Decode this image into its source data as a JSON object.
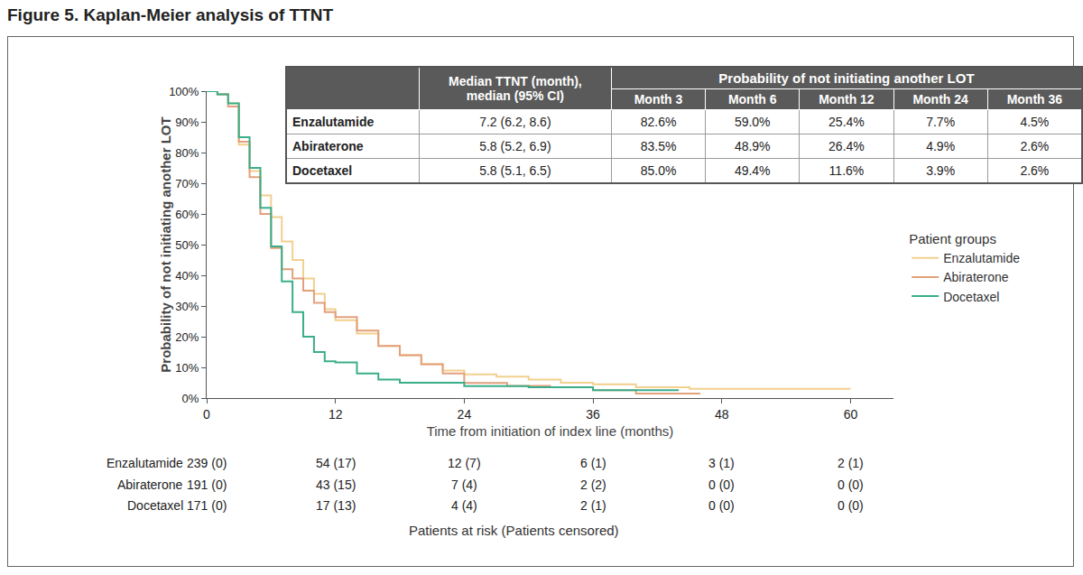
{
  "chart_data": {
    "type": "line",
    "line_style": "step",
    "title": "Figure 5. Kaplan-Meier analysis of TTNT",
    "x_label": "Time from initiation of index line (months)",
    "y_label": "Probability of not initiating another LOT",
    "xlim": [
      0,
      64
    ],
    "xticks": [
      0,
      12,
      24,
      36,
      48,
      60
    ],
    "ylim": [
      0,
      100
    ],
    "yticks": [
      {
        "value": 0,
        "label": "0%"
      },
      {
        "value": 10,
        "label": "10%"
      },
      {
        "value": 20,
        "label": "20%"
      },
      {
        "value": 30,
        "label": "30%"
      },
      {
        "value": 40,
        "label": "40%"
      },
      {
        "value": 50,
        "label": "50%"
      },
      {
        "value": 60,
        "label": "60%"
      },
      {
        "value": 70,
        "label": "70%"
      },
      {
        "value": 80,
        "label": "80%"
      },
      {
        "value": 90,
        "label": "90%"
      },
      {
        "value": 100,
        "label": "100%"
      }
    ],
    "grid": false,
    "legend": "right",
    "legend_title": "Patient groups",
    "series": [
      {
        "name": "Enzalutamide",
        "color": "#f2d08e",
        "x": [
          0,
          1,
          2,
          3,
          4,
          5,
          6,
          7,
          8,
          9,
          10,
          11,
          12,
          14,
          16,
          18,
          20,
          22,
          24,
          27,
          30,
          33,
          36,
          40,
          45,
          50,
          60
        ],
        "values": [
          100,
          99,
          96,
          82.6,
          74,
          66,
          59,
          51,
          45,
          39,
          34,
          29,
          25.4,
          21,
          17,
          14,
          11,
          9,
          7.7,
          7,
          6,
          5,
          4.5,
          3.5,
          3,
          3,
          3
        ]
      },
      {
        "name": "Abiraterone",
        "color": "#e3a07c",
        "x": [
          0,
          1,
          2,
          3,
          4,
          5,
          6,
          7,
          8,
          9,
          10,
          11,
          12,
          14,
          16,
          18,
          20,
          22,
          24,
          28,
          32,
          36,
          40,
          46
        ],
        "values": [
          100,
          99,
          95,
          83.5,
          72,
          60,
          48.9,
          42,
          39,
          35,
          31,
          28,
          26.4,
          22,
          17,
          14,
          11,
          8,
          4.9,
          4,
          3.5,
          2.6,
          1.5,
          1.5
        ]
      },
      {
        "name": "Docetaxel",
        "color": "#3aae8a",
        "x": [
          0,
          1,
          2,
          3,
          4,
          5,
          6,
          7,
          8,
          9,
          10,
          11,
          12,
          14,
          16,
          18,
          20,
          24,
          30,
          36,
          44
        ],
        "values": [
          100,
          99,
          96,
          85,
          75,
          62,
          49.4,
          38,
          28,
          20,
          15,
          12,
          11.6,
          8,
          6,
          5,
          5,
          3.9,
          3.5,
          2.6,
          2.6
        ]
      }
    ],
    "summary_table": {
      "median_header": [
        "Median TTNT (month),",
        "median (95% CI)"
      ],
      "probability_header": "Probability of not initiating another LOT",
      "month_headers": [
        "Month 3",
        "Month 6",
        "Month 12",
        "Month 24",
        "Month 36"
      ],
      "rows": [
        [
          "Enzalutamide",
          "7.2 (6.2, 8.6)",
          "82.6%",
          "59.0%",
          "25.4%",
          "7.7%",
          "4.5%"
        ],
        [
          "Abiraterone",
          "5.8 (5.2, 6.9)",
          "83.5%",
          "48.9%",
          "26.4%",
          "4.9%",
          "2.6%"
        ],
        [
          "Docetaxel",
          "5.8 (5.1, 6.5)",
          "85.0%",
          "49.4%",
          "11.6%",
          "3.9%",
          "2.6%"
        ]
      ]
    },
    "at_risk": {
      "title": "Patients at risk (Patients censored)",
      "times": [
        0,
        12,
        24,
        36,
        48,
        60
      ],
      "rows": [
        {
          "name": "Enzalutamide",
          "values": [
            "239 (0)",
            "54 (17)",
            "12 (7)",
            "6 (1)",
            "3 (1)",
            "2 (1)"
          ]
        },
        {
          "name": "Abiraterone",
          "values": [
            "191 (0)",
            "43 (15)",
            "7 (4)",
            "2 (2)",
            "0 (0)",
            "0 (0)"
          ]
        },
        {
          "name": "Docetaxel",
          "values": [
            "171 (0)",
            "17 (13)",
            "4 (4)",
            "2 (1)",
            "0 (0)",
            "0 (0)"
          ]
        }
      ]
    }
  }
}
